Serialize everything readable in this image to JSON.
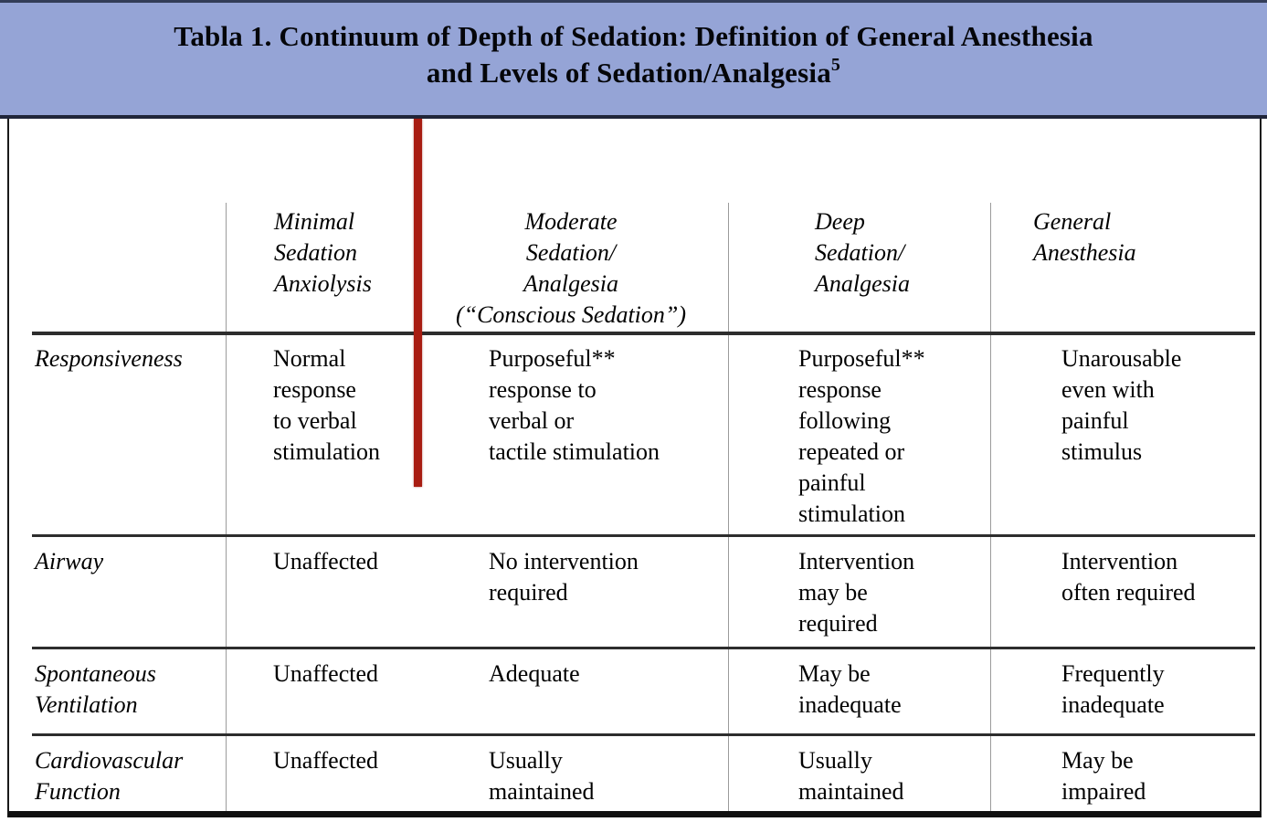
{
  "title": {
    "line1": "Tabla 1. Continuum of Depth of Sedation: Definition of General Anesthesia",
    "line2": "and Levels of Sedation/Analgesia",
    "superscript": "5"
  },
  "colors": {
    "band_blue": "#95a4d6",
    "divider_red": "#a81d12",
    "rule_dark": "#2d2d2d",
    "rule_gray": "#9b9b9b"
  },
  "table": {
    "column_headers": [
      {
        "label": "Minimal\nSedation\nAnxiolysis"
      },
      {
        "label": "Moderate\nSedation/\nAnalgesia\n(“Conscious Sedation”)"
      },
      {
        "label": "Deep\nSedation/\nAnalgesia"
      },
      {
        "label": "General\nAnesthesia"
      }
    ],
    "rows": [
      {
        "label": "Responsiveness",
        "cells": [
          "Normal\nresponse\nto verbal\nstimulation",
          "Purposeful**\nresponse to\nverbal or\ntactile stimulation",
          "Purposeful**\nresponse\nfollowing\nrepeated or\npainful\nstimulation",
          "Unarousable\neven with\npainful\nstimulus"
        ]
      },
      {
        "label": "Airway",
        "cells": [
          "Unaffected",
          "No intervention\nrequired",
          "Intervention\nmay be\nrequired",
          "Intervention\noften required"
        ]
      },
      {
        "label": "Spontaneous\nVentilation",
        "cells": [
          "Unaffected",
          "Adequate",
          "May be\ninadequate",
          "Frequently\ninadequate"
        ]
      },
      {
        "label": "Cardiovascular\nFunction",
        "cells": [
          "Unaffected",
          "Usually\nmaintained",
          "Usually\nmaintained",
          "May be\nimpaired"
        ]
      }
    ]
  }
}
